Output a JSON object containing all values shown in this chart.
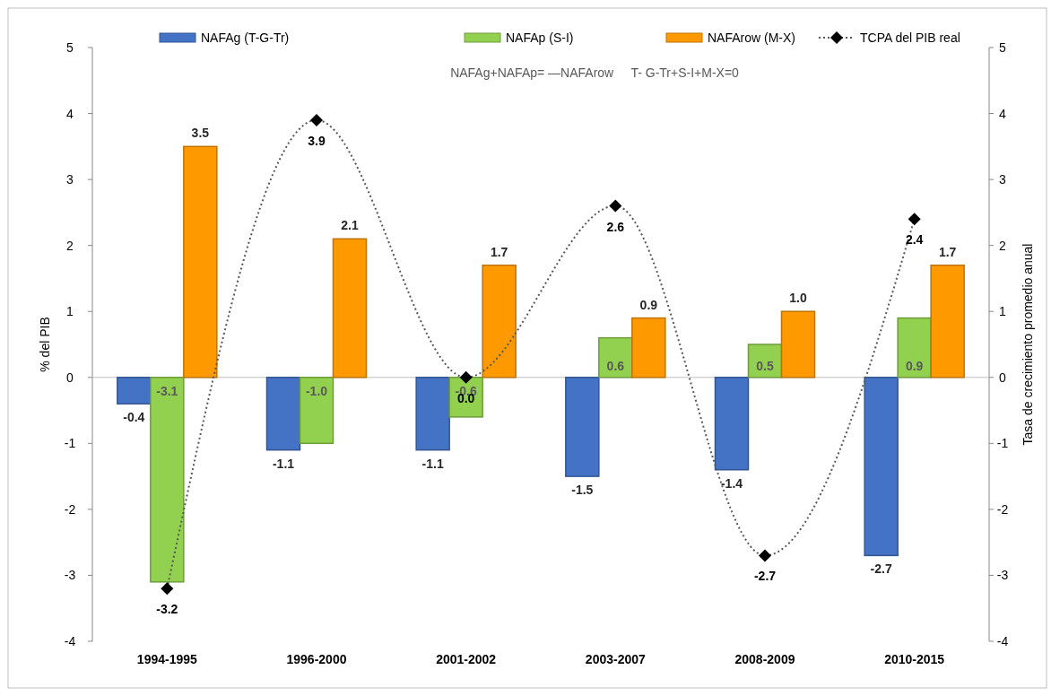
{
  "chart_data": {
    "type": "bar",
    "categories": [
      "1994-1995",
      "1996-2000",
      "2001-2002",
      "2003-2007",
      "2008-2009",
      "2010-2015"
    ],
    "series": [
      {
        "name": "NAFAg  (T-G-Tr)",
        "color": "#4472c4",
        "values": [
          -0.4,
          -1.1,
          -1.1,
          -1.5,
          -1.4,
          -2.7
        ],
        "value_labels": [
          "-0.4",
          "-1.1",
          "-1.1",
          "-1.5",
          "-1.4",
          "-2.7"
        ]
      },
      {
        "name": "NAFAp (S-I)",
        "color": "#92d050",
        "values": [
          -3.1,
          -1.0,
          -0.6,
          0.6,
          0.5,
          0.9
        ],
        "value_labels": [
          "-3.1",
          "-1.0",
          "-0.6",
          "0.6",
          "0.5",
          "0.9"
        ]
      },
      {
        "name": "NAFArow (M-X)",
        "color": "#ff9900",
        "values": [
          3.5,
          2.1,
          1.7,
          0.9,
          1.0,
          1.7
        ],
        "value_labels": [
          "3.5",
          "2.1",
          "1.7",
          "0.9",
          "1.0",
          "1.7"
        ]
      },
      {
        "name": "TCPA del PIB real",
        "type": "line",
        "axis": "y2",
        "color": "#595959",
        "marker": "diamond",
        "line_style": "dotted",
        "values": [
          -3.2,
          3.9,
          0.0,
          2.6,
          -2.7,
          2.4
        ],
        "value_labels": [
          "-3.2",
          "3.9",
          "0.0",
          "2.6",
          "-2.7",
          "2.4"
        ]
      }
    ],
    "ylabel": "% del PIB",
    "y2label": "Tasa de crecimiento promedio anual",
    "ylim": [
      -4,
      5
    ],
    "yticks": [
      -4,
      -3,
      -2,
      -1,
      0,
      1,
      2,
      3,
      4,
      5
    ],
    "y2lim": [
      -4,
      5
    ],
    "y2ticks": [
      -4,
      -3,
      -2,
      -1,
      0,
      1,
      2,
      3,
      4,
      5
    ],
    "annotations": [
      "NAFAg+NAFAp= —NAFArow     T- G-Tr+S-I+M-X=0"
    ],
    "legend": "top"
  }
}
